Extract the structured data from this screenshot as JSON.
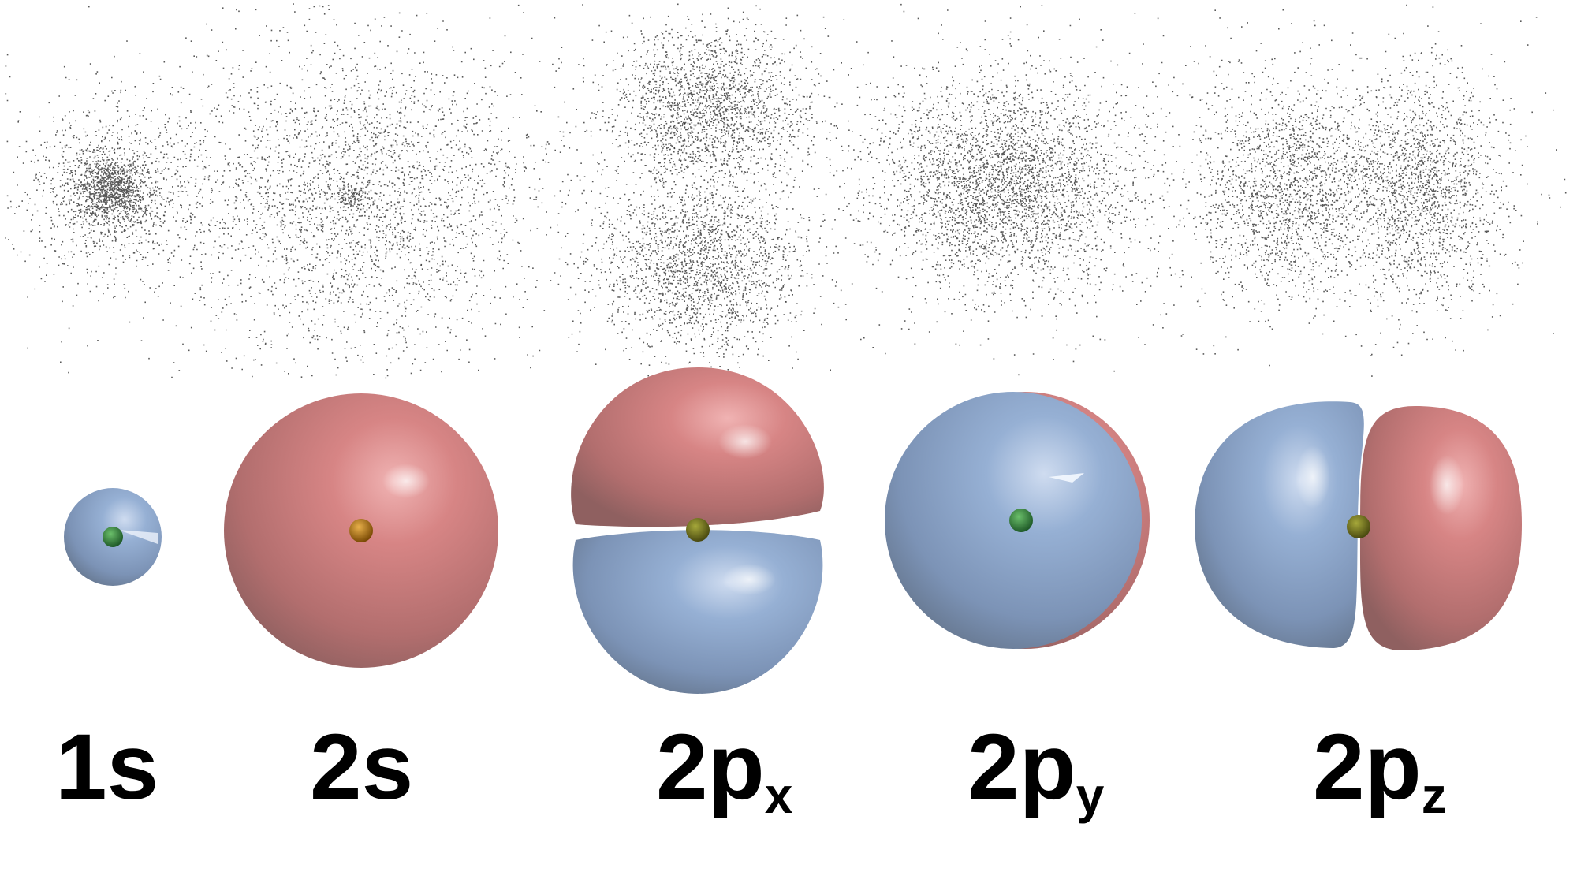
{
  "colors": {
    "positive_lobe": "#c97575",
    "negative_lobe": "#8aa6cc",
    "nucleus_green": "#2e7a3a",
    "nucleus_orange": "#c98a1a",
    "dots": "#222222",
    "background": "#ffffff"
  },
  "orbitals": [
    {
      "id": "1s",
      "main": "1s",
      "sub": ""
    },
    {
      "id": "2s",
      "main": "2s",
      "sub": ""
    },
    {
      "id": "2px",
      "main": "2p",
      "sub": "x"
    },
    {
      "id": "2py",
      "main": "2p",
      "sub": "y"
    },
    {
      "id": "2pz",
      "main": "2p",
      "sub": "z"
    }
  ]
}
